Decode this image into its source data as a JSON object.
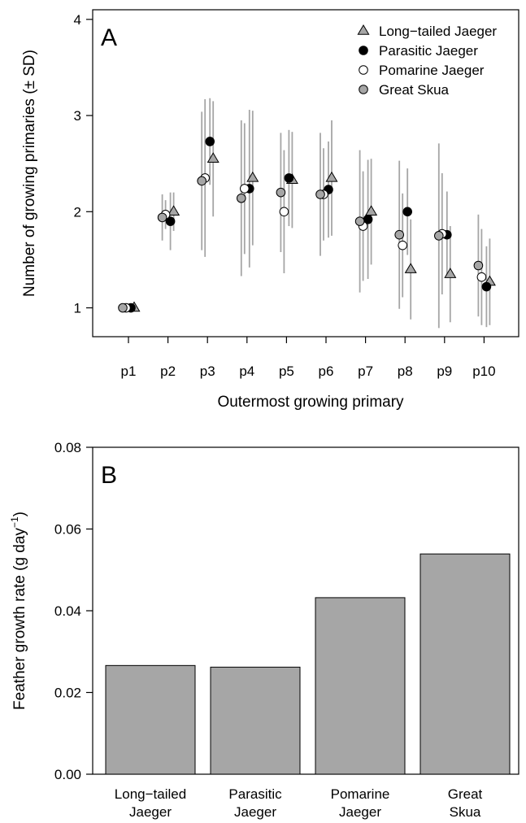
{
  "chart_data": [
    {
      "panel": "A",
      "type": "scatter",
      "title": "",
      "xlabel": "Outermost growing primary",
      "ylabel": "Number of growing primaries (± SD)",
      "ylim": [
        0.7,
        4.1
      ],
      "yticks": [
        1,
        2,
        3,
        4
      ],
      "categories": [
        "p1",
        "p2",
        "p3",
        "p4",
        "p5",
        "p6",
        "p7",
        "p8",
        "p9",
        "p10"
      ],
      "grid": false,
      "legend_position": "top-right",
      "series": [
        {
          "name": "Long−tailed Jaeger",
          "marker": "triangle",
          "fill": "#a6a6a6",
          "values": [
            1.0,
            2.0,
            2.55,
            2.35,
            2.33,
            2.35,
            2.0,
            1.4,
            1.35,
            1.27
          ],
          "sd": [
            0.0,
            0.2,
            0.6,
            0.7,
            0.5,
            0.6,
            0.55,
            0.52,
            0.5,
            0.45
          ]
        },
        {
          "name": "Parasitic Jaeger",
          "marker": "circle",
          "fill": "#000000",
          "values": [
            1.0,
            1.9,
            2.73,
            2.24,
            2.35,
            2.23,
            1.92,
            2.0,
            1.76,
            1.22
          ],
          "sd": [
            0.0,
            0.3,
            0.45,
            0.82,
            0.5,
            0.5,
            0.62,
            0.45,
            0.45,
            0.42
          ]
        },
        {
          "name": "Pomarine Jaeger",
          "marker": "circle",
          "fill": "#ffffff",
          "values": [
            1.0,
            1.97,
            2.35,
            2.24,
            2.0,
            2.18,
            1.85,
            1.65,
            1.77,
            1.32
          ],
          "sd": [
            0.0,
            0.15,
            0.82,
            0.68,
            0.64,
            0.48,
            0.57,
            0.54,
            0.63,
            0.5
          ]
        },
        {
          "name": "Great Skua",
          "marker": "circle",
          "fill": "#a6a6a6",
          "values": [
            1.0,
            1.94,
            2.32,
            2.14,
            2.2,
            2.18,
            1.9,
            1.76,
            1.75,
            1.44
          ],
          "sd": [
            0.0,
            0.24,
            0.72,
            0.81,
            0.62,
            0.64,
            0.74,
            0.77,
            0.96,
            0.53
          ]
        }
      ]
    },
    {
      "panel": "B",
      "type": "bar",
      "title": "",
      "xlabel": "",
      "ylabel": "Feather growth rate (g day",
      "ylabel_superscript": "−1",
      "ylabel_suffix": ")",
      "ylim": [
        0,
        0.08
      ],
      "yticks": [
        "0.00",
        "0.02",
        "0.04",
        "0.06",
        "0.08"
      ],
      "categories": [
        [
          "Long−tailed",
          "Jaeger"
        ],
        [
          "Parasitic",
          "Jaeger"
        ],
        [
          "Pomarine",
          "Jaeger"
        ],
        [
          "Great",
          "Skua"
        ]
      ],
      "values": [
        0.0266,
        0.0262,
        0.0432,
        0.0539
      ],
      "bar_color": "#a6a6a6"
    }
  ]
}
